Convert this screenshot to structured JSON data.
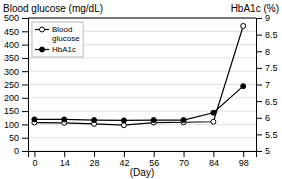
{
  "chart_data": {
    "type": "line",
    "x": [
      0,
      14,
      28,
      42,
      56,
      70,
      84,
      98
    ],
    "xlabel": "(Day)",
    "ylabel": "Blood glucose (mg/dL)",
    "y2label": "HbA1c (%)",
    "xlim": [
      -3,
      104
    ],
    "xticks": [
      0,
      14,
      28,
      42,
      56,
      70,
      84,
      98
    ],
    "ylim": [
      0,
      500
    ],
    "yticks": [
      0,
      50,
      100,
      150,
      200,
      250,
      300,
      350,
      400,
      450,
      500
    ],
    "y2lim": [
      5.0,
      9.0
    ],
    "y2ticks": [
      5.0,
      5.5,
      6.0,
      6.5,
      7.0,
      7.5,
      8.0,
      8.5,
      9.0
    ],
    "grid": true,
    "legend": "upper left",
    "series": [
      {
        "name": "Blood\nglucose",
        "color": "#000000",
        "marker": "circle-open",
        "values": [
          107,
          106,
          102,
          97,
          107,
          108,
          110,
          470
        ]
      },
      {
        "name": "HbA1c",
        "color": "#000000",
        "marker": "circle",
        "axis": "y2",
        "values": [
          5.95,
          5.95,
          5.93,
          5.92,
          5.93,
          5.93,
          6.15,
          6.95
        ]
      }
    ]
  }
}
